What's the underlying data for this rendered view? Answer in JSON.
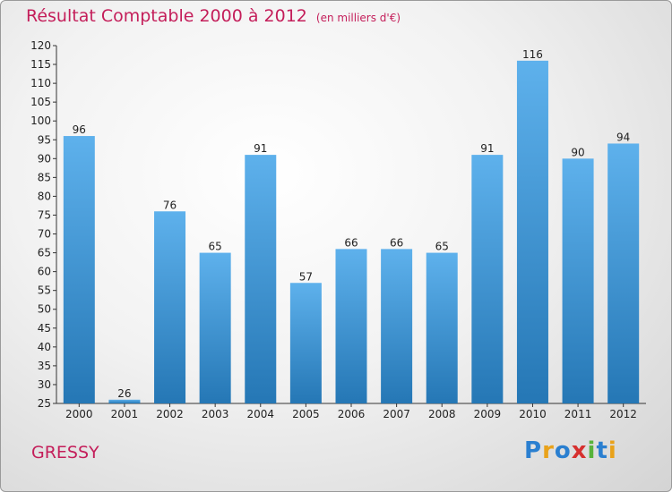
{
  "title": "Résultat Comptable 2000 à 2012",
  "unit": "(en milliers d'€)",
  "place": "GRESSY",
  "logo": {
    "letters": [
      "P",
      "r",
      "o",
      "x",
      "i",
      "t",
      "i"
    ],
    "colors": [
      "#2a7fd0",
      "#e9a21a",
      "#2a7fd0",
      "#d6302e",
      "#57b33b",
      "#2a7fd0",
      "#e9a21a"
    ]
  },
  "colors": {
    "bar_light": "#5eb1ec",
    "bar_dark": "#2577b5",
    "title": "#c41e5a"
  },
  "chart_data": {
    "type": "bar",
    "title": "Résultat Comptable 2000 à 2012",
    "ylabel": "(en milliers d'€)",
    "categories": [
      "2000",
      "2001",
      "2002",
      "2003",
      "2004",
      "2005",
      "2006",
      "2007",
      "2008",
      "2009",
      "2010",
      "2011",
      "2012"
    ],
    "values": [
      96,
      26,
      76,
      65,
      91,
      57,
      66,
      66,
      65,
      91,
      116,
      90,
      94
    ],
    "ylim": [
      25,
      120
    ],
    "yticks": [
      25,
      30,
      35,
      40,
      45,
      50,
      55,
      60,
      65,
      70,
      75,
      80,
      85,
      90,
      95,
      100,
      105,
      110,
      115,
      120
    ],
    "grid": false,
    "data_labels": true
  }
}
